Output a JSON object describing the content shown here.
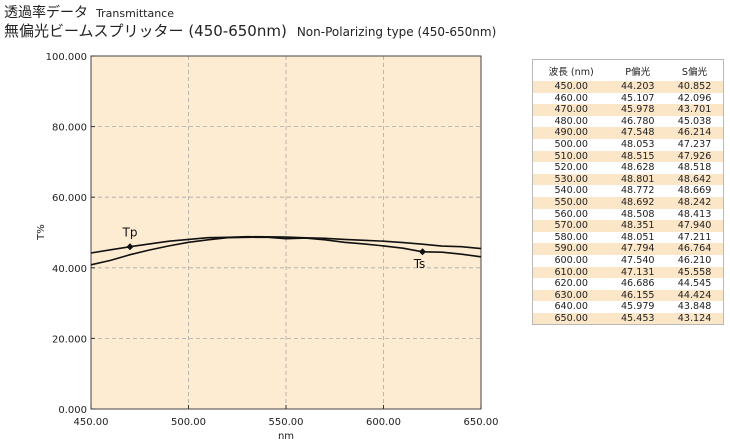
{
  "header": {
    "title_jp": "透過率データ",
    "title_en": "Transmittance",
    "subtitle_jp": "無偏光ビームスプリッター (450-650nm)",
    "subtitle_en": "Non-Polarizing type (450-650nm)"
  },
  "colors": {
    "plot_bg": "#fdebd2",
    "row_alt": "#fbe6c8",
    "grid": "#a9a9a9",
    "line": "#111111"
  },
  "chart_data": {
    "type": "line",
    "xlabel": "nm",
    "ylabel": "T%",
    "xlim": [
      450,
      650
    ],
    "ylim": [
      0,
      100
    ],
    "xticks": [
      "450.00",
      "500.00",
      "550.00",
      "600.00",
      "650.00"
    ],
    "yticks": [
      "0.000",
      "20.000",
      "40.000",
      "60.000",
      "80.000",
      "100.000"
    ],
    "grid": true,
    "series": [
      {
        "name": "Tp",
        "x": [
          450,
          460,
          470,
          480,
          490,
          500,
          510,
          520,
          530,
          540,
          550,
          560,
          570,
          580,
          590,
          600,
          610,
          620,
          630,
          640,
          650
        ],
        "values": [
          44.203,
          45.107,
          45.978,
          46.78,
          47.548,
          48.053,
          48.515,
          48.628,
          48.801,
          48.772,
          48.692,
          48.508,
          48.351,
          48.051,
          47.794,
          47.54,
          47.131,
          46.686,
          46.155,
          45.979,
          45.453
        ]
      },
      {
        "name": "Ts",
        "x": [
          450,
          460,
          470,
          480,
          490,
          500,
          510,
          520,
          530,
          540,
          550,
          560,
          570,
          580,
          590,
          600,
          610,
          620,
          630,
          640,
          650
        ],
        "values": [
          40.852,
          42.096,
          43.701,
          45.038,
          46.214,
          47.237,
          47.926,
          48.518,
          48.642,
          48.669,
          48.242,
          48.413,
          47.94,
          47.211,
          46.764,
          46.21,
          45.558,
          44.545,
          44.424,
          43.848,
          43.124
        ]
      }
    ],
    "annotations": [
      {
        "label": "Tp",
        "series": 0,
        "marker_x": 470
      },
      {
        "label": "Ts",
        "series": 1,
        "marker_x": 620
      }
    ]
  },
  "table": {
    "headers": [
      "波長 (nm)",
      "P偏光",
      "S偏光"
    ],
    "rows": [
      [
        "450.00",
        "44.203",
        "40.852"
      ],
      [
        "460.00",
        "45.107",
        "42.096"
      ],
      [
        "470.00",
        "45.978",
        "43.701"
      ],
      [
        "480.00",
        "46.780",
        "45.038"
      ],
      [
        "490.00",
        "47.548",
        "46.214"
      ],
      [
        "500.00",
        "48.053",
        "47.237"
      ],
      [
        "510.00",
        "48.515",
        "47.926"
      ],
      [
        "520.00",
        "48.628",
        "48.518"
      ],
      [
        "530.00",
        "48.801",
        "48.642"
      ],
      [
        "540.00",
        "48.772",
        "48.669"
      ],
      [
        "550.00",
        "48.692",
        "48.242"
      ],
      [
        "560.00",
        "48.508",
        "48.413"
      ],
      [
        "570.00",
        "48.351",
        "47.940"
      ],
      [
        "580.00",
        "48.051",
        "47.211"
      ],
      [
        "590.00",
        "47.794",
        "46.764"
      ],
      [
        "600.00",
        "47.540",
        "46.210"
      ],
      [
        "610.00",
        "47.131",
        "45.558"
      ],
      [
        "620.00",
        "46.686",
        "44.545"
      ],
      [
        "630.00",
        "46.155",
        "44.424"
      ],
      [
        "640.00",
        "45.979",
        "43.848"
      ],
      [
        "650.00",
        "45.453",
        "43.124"
      ]
    ]
  }
}
